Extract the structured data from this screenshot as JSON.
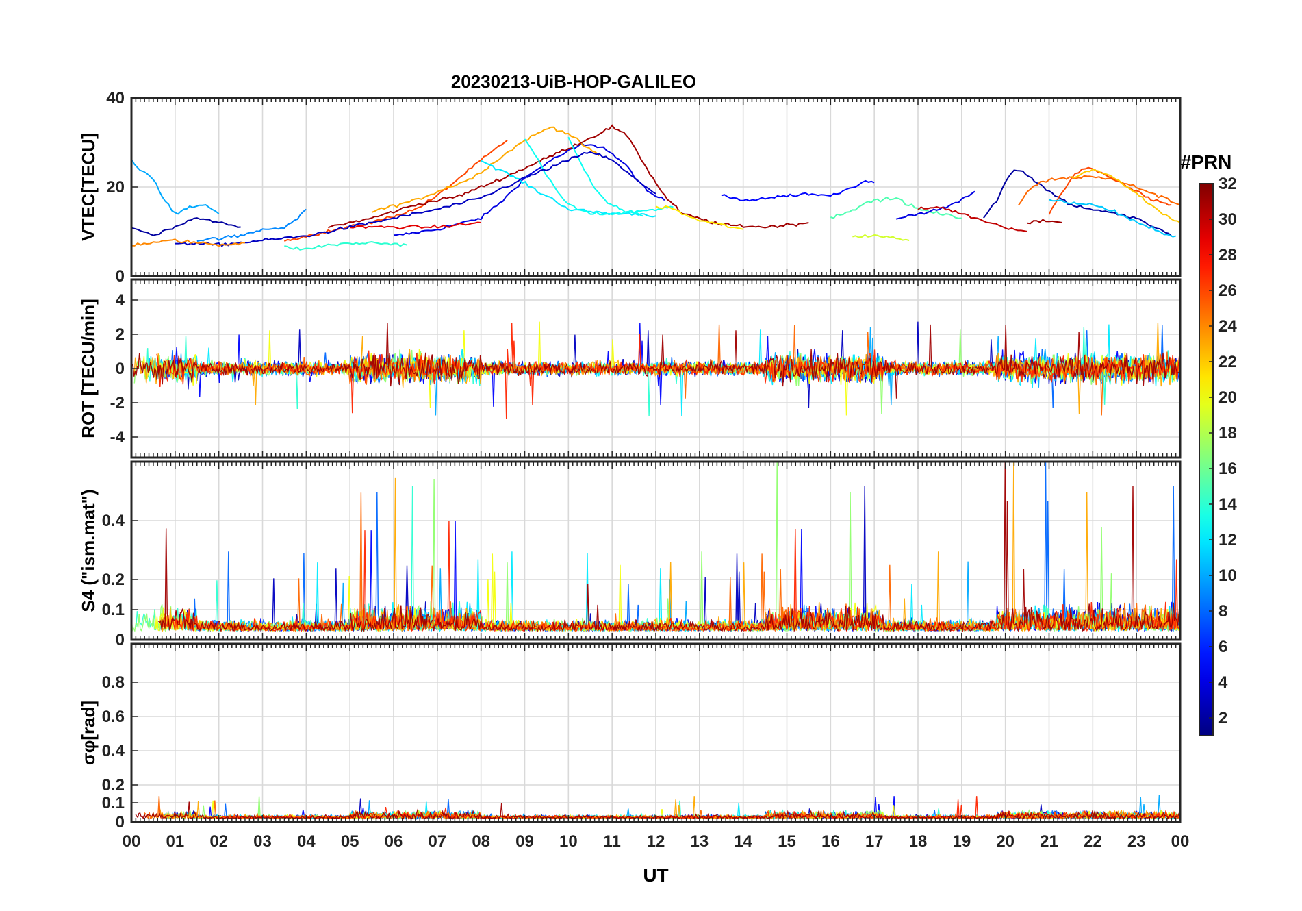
{
  "chart_data": {
    "type": "line",
    "title": "20230213-UiB-HOP-GALILEO",
    "xlabel": "UT",
    "x_ticks": [
      "00",
      "01",
      "02",
      "03",
      "04",
      "05",
      "06",
      "07",
      "08",
      "09",
      "10",
      "11",
      "12",
      "13",
      "14",
      "15",
      "16",
      "17",
      "18",
      "19",
      "20",
      "21",
      "22",
      "23",
      "00"
    ],
    "xlim": [
      0,
      24
    ],
    "colorbar": {
      "label": "#PRN",
      "range": [
        1,
        32
      ],
      "ticks": [
        "2",
        "4",
        "6",
        "8",
        "10",
        "12",
        "14",
        "16",
        "18",
        "20",
        "22",
        "24",
        "26",
        "28",
        "30",
        "32"
      ],
      "colormap": "jet"
    },
    "panels": [
      {
        "name": "vtec",
        "ylabel": "VTEC[TECU]",
        "ylim": [
          0,
          40
        ],
        "y_ticks": [
          "0",
          "20",
          "40"
        ],
        "series": [
          {
            "prn": 4,
            "points": [
              [
                6.0,
                9
              ],
              [
                7.0,
                10.5
              ],
              [
                8.0,
                13
              ],
              [
                8.5,
                17
              ],
              [
                9.0,
                22
              ],
              [
                9.6,
                26
              ],
              [
                10.3,
                29.5
              ],
              [
                10.8,
                29
              ],
              [
                11.3,
                25
              ],
              [
                11.8,
                19
              ],
              [
                12.2,
                17
              ]
            ]
          },
          {
            "prn": 26,
            "points": [
              [
                3.5,
                8
              ],
              [
                4.5,
                10
              ],
              [
                5.5,
                12
              ],
              [
                6.5,
                15
              ],
              [
                7.0,
                18
              ],
              [
                7.5,
                22
              ],
              [
                8.0,
                26
              ],
              [
                8.4,
                29
              ],
              [
                8.6,
                30.5
              ]
            ]
          },
          {
            "prn": 23,
            "points": [
              [
                5.5,
                14.5
              ],
              [
                6.5,
                17
              ],
              [
                7.0,
                19
              ],
              [
                7.8,
                22
              ],
              [
                8.5,
                27
              ],
              [
                9.0,
                30.5
              ],
              [
                9.6,
                33.5
              ],
              [
                10.0,
                32
              ],
              [
                10.4,
                29
              ],
              [
                10.7,
                27
              ]
            ]
          },
          {
            "prn": 31,
            "points": [
              [
                4.5,
                11
              ],
              [
                5.5,
                13
              ],
              [
                6.5,
                16
              ],
              [
                7.5,
                18
              ],
              [
                8.5,
                22
              ],
              [
                9.5,
                26.5
              ],
              [
                10.5,
                31
              ],
              [
                11.0,
                33.5
              ],
              [
                11.4,
                31
              ],
              [
                11.8,
                24
              ],
              [
                12.2,
                18
              ],
              [
                12.6,
                14
              ],
              [
                13.5,
                11.5
              ],
              [
                14.5,
                11
              ],
              [
                15.5,
                12
              ]
            ]
          },
          {
            "prn": 12,
            "points": [
              [
                8.0,
                26
              ],
              [
                8.4,
                24
              ],
              [
                8.8,
                22
              ],
              [
                9.3,
                19
              ],
              [
                9.7,
                17
              ],
              [
                10.0,
                15
              ],
              [
                10.5,
                14.5
              ],
              [
                11.0,
                14
              ],
              [
                11.6,
                14
              ],
              [
                12.0,
                13.5
              ]
            ]
          },
          {
            "prn": 13,
            "points": [
              [
                9.0,
                31
              ],
              [
                9.3,
                26
              ],
              [
                9.6,
                21
              ],
              [
                9.9,
                17
              ],
              [
                10.2,
                15
              ],
              [
                10.5,
                14
              ],
              [
                11.0,
                14
              ],
              [
                11.5,
                14.5
              ],
              [
                12.0,
                15
              ],
              [
                12.4,
                15.5
              ]
            ]
          },
          {
            "prn": 13,
            "points": [
              [
                10.0,
                31
              ],
              [
                10.3,
                25
              ],
              [
                10.6,
                20
              ],
              [
                10.9,
                16.5
              ],
              [
                11.3,
                14.5
              ],
              [
                11.7,
                13.5
              ]
            ]
          },
          {
            "prn": 3,
            "points": [
              [
                1.0,
                7.5
              ],
              [
                2.0,
                7
              ],
              [
                3.0,
                8
              ],
              [
                4.0,
                9
              ],
              [
                5.0,
                11
              ],
              [
                6.0,
                13
              ],
              [
                7.0,
                15
              ],
              [
                8.0,
                17.5
              ],
              [
                9.0,
                22
              ],
              [
                10.0,
                26
              ],
              [
                10.5,
                28
              ],
              [
                11.0,
                26
              ],
              [
                11.5,
                22
              ],
              [
                12.0,
                18.5
              ]
            ]
          },
          {
            "prn": 2,
            "points": [
              [
                0.0,
                11
              ],
              [
                0.5,
                9
              ],
              [
                1.0,
                11
              ],
              [
                1.5,
                13
              ],
              [
                2.0,
                12
              ],
              [
                2.5,
                11
              ]
            ]
          },
          {
            "prn": 10,
            "points": [
              [
                0.0,
                26
              ],
              [
                0.2,
                24
              ],
              [
                0.5,
                22
              ],
              [
                0.7,
                18
              ],
              [
                1.0,
                14
              ],
              [
                1.4,
                15.5
              ],
              [
                1.7,
                16
              ],
              [
                2.0,
                14
              ]
            ]
          },
          {
            "prn": 24,
            "points": [
              [
                0.0,
                7
              ],
              [
                0.5,
                7.5
              ],
              [
                1.0,
                8
              ],
              [
                1.5,
                7.5
              ],
              [
                2.0,
                7
              ],
              [
                2.6,
                7.5
              ]
            ]
          },
          {
            "prn": 9,
            "points": [
              [
                1.5,
                8
              ],
              [
                2.5,
                9
              ],
              [
                3.0,
                10.5
              ],
              [
                3.5,
                11
              ],
              [
                3.8,
                13
              ],
              [
                4.0,
                15
              ]
            ]
          },
          {
            "prn": 14,
            "points": [
              [
                3.5,
                6.5
              ],
              [
                4.0,
                6
              ],
              [
                4.5,
                7
              ],
              [
                5.5,
                7.5
              ],
              [
                6.3,
                7
              ]
            ]
          },
          {
            "prn": 29,
            "points": [
              [
                5.0,
                11
              ],
              [
                6.0,
                11
              ],
              [
                7.0,
                11
              ],
              [
                7.5,
                11.5
              ],
              [
                8.0,
                12
              ]
            ]
          },
          {
            "prn": 21,
            "points": [
              [
                12.0,
                15.5
              ],
              [
                12.3,
                15.5
              ],
              [
                12.6,
                14
              ],
              [
                13.0,
                12.5
              ],
              [
                13.5,
                11.5
              ],
              [
                14.0,
                10.5
              ]
            ]
          },
          {
            "prn": 5,
            "points": [
              [
                13.5,
                18
              ],
              [
                14.0,
                17
              ],
              [
                14.5,
                17.5
              ],
              [
                15.0,
                18
              ],
              [
                15.5,
                18.5
              ],
              [
                16.0,
                18
              ],
              [
                16.5,
                20
              ],
              [
                16.8,
                21.5
              ],
              [
                17.0,
                21
              ]
            ]
          },
          {
            "prn": 15,
            "points": [
              [
                16.0,
                13
              ],
              [
                16.5,
                15
              ],
              [
                17.0,
                17
              ],
              [
                17.5,
                17.5
              ],
              [
                18.0,
                15
              ],
              [
                18.5,
                14
              ],
              [
                19.0,
                13
              ]
            ]
          },
          {
            "prn": 19,
            "points": [
              [
                16.5,
                9
              ],
              [
                17.0,
                9
              ],
              [
                17.5,
                8.5
              ],
              [
                17.8,
                8
              ]
            ]
          },
          {
            "prn": 4,
            "points": [
              [
                17.5,
                13
              ],
              [
                18.0,
                14
              ],
              [
                18.5,
                15
              ],
              [
                19.0,
                17
              ],
              [
                19.3,
                19
              ]
            ]
          },
          {
            "prn": 30,
            "points": [
              [
                18.0,
                15
              ],
              [
                18.5,
                15.5
              ],
              [
                19.0,
                14
              ],
              [
                19.5,
                12.5
              ],
              [
                20.0,
                11
              ],
              [
                20.5,
                10
              ]
            ]
          },
          {
            "prn": 2,
            "points": [
              [
                19.5,
                13
              ],
              [
                19.8,
                17
              ],
              [
                20.0,
                21
              ],
              [
                20.2,
                24
              ],
              [
                20.4,
                23.5
              ],
              [
                20.6,
                22
              ],
              [
                21.0,
                19
              ],
              [
                21.5,
                16
              ],
              [
                22.0,
                15
              ],
              [
                22.5,
                14
              ],
              [
                23.0,
                13
              ],
              [
                23.4,
                11
              ],
              [
                23.8,
                9
              ]
            ]
          },
          {
            "prn": 25,
            "points": [
              [
                20.3,
                16
              ],
              [
                20.5,
                19
              ],
              [
                20.8,
                21
              ],
              [
                21.2,
                22
              ],
              [
                21.6,
                22
              ],
              [
                22.0,
                22.5
              ],
              [
                22.5,
                21.5
              ],
              [
                23.0,
                20
              ],
              [
                23.5,
                18
              ],
              [
                24.0,
                16
              ]
            ]
          },
          {
            "prn": 26,
            "points": [
              [
                21.0,
                14
              ],
              [
                21.3,
                19
              ],
              [
                21.6,
                23
              ],
              [
                21.9,
                24.5
              ],
              [
                22.2,
                23
              ],
              [
                22.6,
                21
              ],
              [
                23.0,
                19
              ],
              [
                23.4,
                17
              ],
              [
                23.8,
                16
              ]
            ]
          },
          {
            "prn": 22,
            "points": [
              [
                21.5,
                22
              ],
              [
                22.0,
                24
              ],
              [
                22.4,
                22.5
              ],
              [
                22.8,
                20
              ],
              [
                23.2,
                17
              ],
              [
                23.6,
                14
              ],
              [
                24.0,
                12
              ]
            ]
          },
          {
            "prn": 31,
            "points": [
              [
                20.5,
                12
              ],
              [
                21.0,
                12.5
              ],
              [
                21.3,
                12
              ]
            ]
          },
          {
            "prn": 11,
            "points": [
              [
                21.0,
                17
              ],
              [
                21.5,
                16.5
              ],
              [
                22.0,
                16
              ],
              [
                22.5,
                14.5
              ],
              [
                23.0,
                12
              ],
              [
                23.5,
                10
              ],
              [
                23.9,
                9
              ]
            ]
          }
        ]
      },
      {
        "name": "rot",
        "ylabel": "ROT [TECU/min]",
        "ylim": [
          -5.2,
          5.2
        ],
        "y_ticks": [
          "-4",
          "-2",
          "0",
          "2",
          "4"
        ]
      },
      {
        "name": "s4",
        "ylabel": "S4 (\"ism.mat\")",
        "ylim": [
          0,
          0.6
        ],
        "y_ticks": [
          "0",
          "0.1",
          "0.2",
          "0.4"
        ]
      },
      {
        "name": "sigma_phi",
        "ylabel": "σφ[rad]",
        "ylim": [
          0,
          1.0
        ],
        "y_ticks": [
          "0",
          "0.1",
          "0.2",
          "0.4",
          "0.6",
          "0.8"
        ]
      }
    ]
  }
}
